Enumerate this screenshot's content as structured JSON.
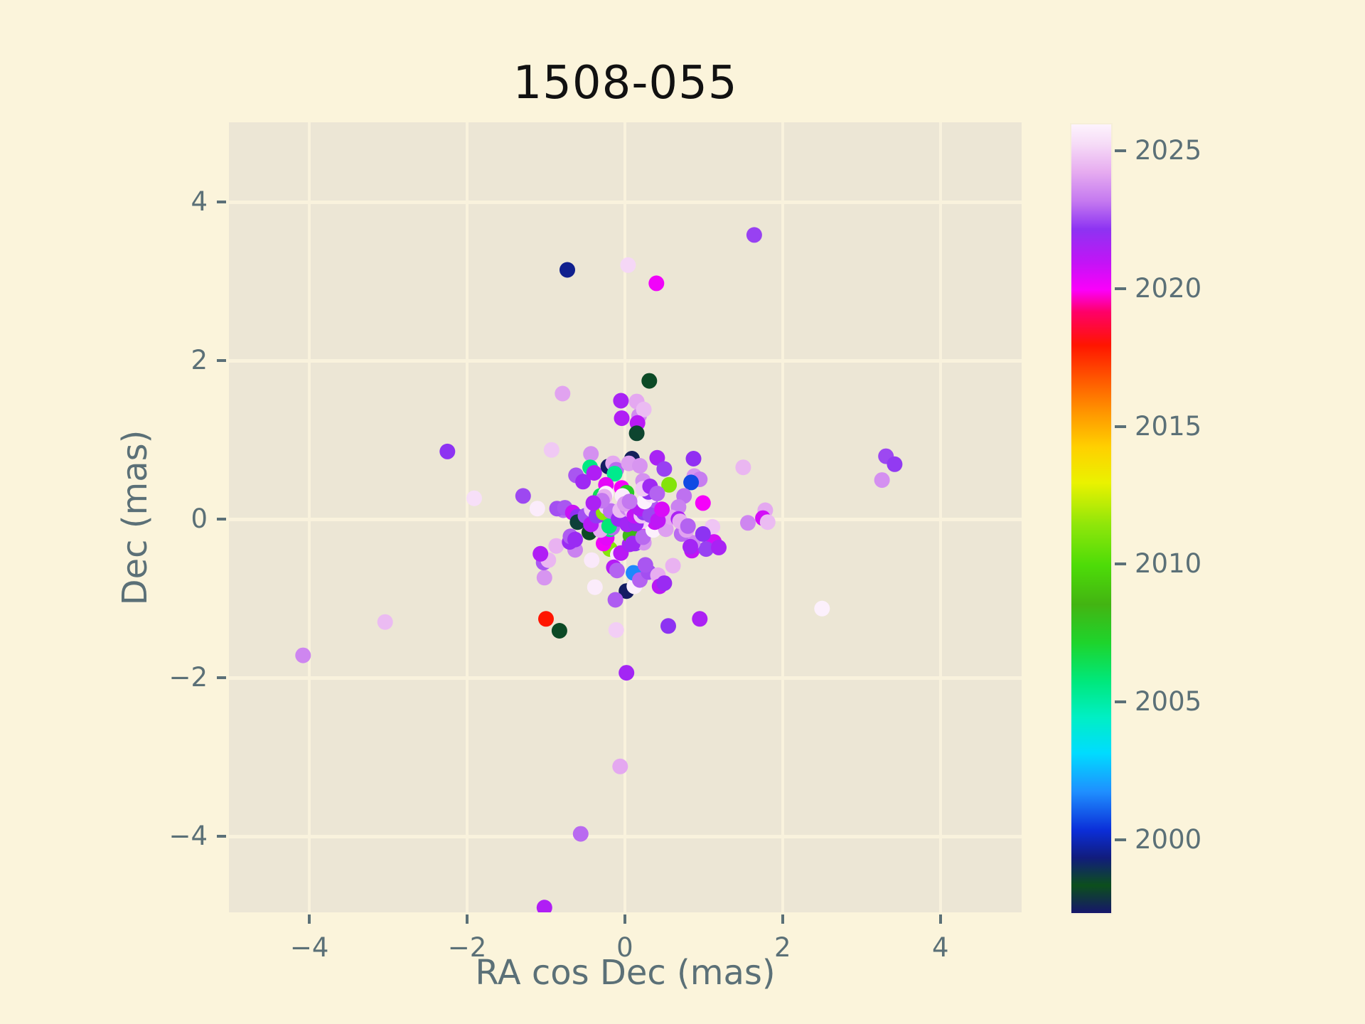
{
  "title": "1508-055",
  "style": {
    "figure_bg": "#fbf4db",
    "axes_bg": "#ece6d5",
    "grid_color": "#f9f2dd",
    "tick_color": "#5b7077",
    "label_color": "#5b7077",
    "title_color": "#111111"
  },
  "x_axis": {
    "label": "RA cos Dec (mas)",
    "tick_values": [
      -4,
      -2,
      0,
      2,
      4
    ],
    "tick_labels": [
      "−4",
      "−2",
      "0",
      "2",
      "4"
    ],
    "range": [
      -5.02,
      5.03
    ]
  },
  "y_axis": {
    "label": "Dec (mas)",
    "tick_values": [
      -4,
      -2,
      0,
      2,
      4
    ],
    "tick_labels": [
      "−4",
      "−2",
      "0",
      "2",
      "4"
    ],
    "range": [
      -4.96,
      5.0
    ]
  },
  "colorbar": {
    "vmin": 1997.4,
    "vmax": 2026.0,
    "tick_values": [
      2025,
      2020,
      2015,
      2010,
      2005,
      2000
    ],
    "tick_labels": [
      "2025",
      "2020",
      "2015",
      "2010",
      "2005",
      "2000"
    ],
    "stops": [
      [
        1997.4,
        "#16166b"
      ],
      [
        1998.4,
        "#0c4f1c"
      ],
      [
        1999.4,
        "#111c7c"
      ],
      [
        2000.4,
        "#0b2ed8"
      ],
      [
        2001.8,
        "#1f8fff"
      ],
      [
        2003.2,
        "#00dcff"
      ],
      [
        2004.5,
        "#00efc4"
      ],
      [
        2005.8,
        "#00e87c"
      ],
      [
        2007.2,
        "#1ed42c"
      ],
      [
        2008.6,
        "#43b412"
      ],
      [
        2010.0,
        "#4ddc08"
      ],
      [
        2011.5,
        "#90e60a"
      ],
      [
        2013.0,
        "#eaf200"
      ],
      [
        2014.3,
        "#ffd000"
      ],
      [
        2015.5,
        "#ff9800"
      ],
      [
        2016.8,
        "#ff5500"
      ],
      [
        2018.0,
        "#ff1500"
      ],
      [
        2019.2,
        "#ff0068"
      ],
      [
        2020.0,
        "#fb00fa"
      ],
      [
        2021.0,
        "#c214f6"
      ],
      [
        2022.2,
        "#8d33f2"
      ],
      [
        2023.2,
        "#c478f0"
      ],
      [
        2024.3,
        "#e7adf0"
      ],
      [
        2025.3,
        "#f6dcf7"
      ],
      [
        2026.0,
        "#fdf3fd"
      ]
    ]
  },
  "chart_data": {
    "type": "scatter",
    "title": "1508-055",
    "xlabel": "RA cos Dec (mas)",
    "ylabel": "Dec (mas)",
    "xlim": [
      -5.02,
      5.03
    ],
    "ylim": [
      -4.96,
      5.0
    ],
    "grid": true,
    "color_variable": "epoch year (colorbar 1997.4–2026)",
    "marker_radius_px": 11,
    "point_format": [
      "ra_cos_dec_mas",
      "dec_mas",
      "epoch_year"
    ],
    "points": [
      [
        1.64,
        3.58,
        2022.4
      ],
      [
        -0.73,
        3.14,
        1999.6
      ],
      [
        0.04,
        3.2,
        2025.2
      ],
      [
        0.4,
        2.97,
        2020.2
      ],
      [
        0.31,
        1.74,
        1998.5
      ],
      [
        -0.79,
        1.58,
        2024.1
      ],
      [
        -0.04,
        1.27,
        2021.4
      ],
      [
        0.18,
        1.3,
        2023.6
      ],
      [
        -0.05,
        1.49,
        2021.6
      ],
      [
        0.15,
        1.48,
        2024.2
      ],
      [
        0.24,
        1.38,
        2024.6
      ],
      [
        0.16,
        1.21,
        2021.2
      ],
      [
        0.15,
        1.08,
        1998.6
      ],
      [
        -2.25,
        0.85,
        2022.2
      ],
      [
        -1.91,
        0.26,
        2025.4
      ],
      [
        -1.29,
        0.29,
        2022.5
      ],
      [
        -0.93,
        0.87,
        2024.9
      ],
      [
        -1.11,
        0.13,
        2025.8
      ],
      [
        -0.78,
        0.11,
        2023.0
      ],
      [
        -0.86,
        0.13,
        2022.6
      ],
      [
        -0.62,
        0.55,
        2022.7
      ],
      [
        -0.53,
        0.47,
        2021.8
      ],
      [
        -0.43,
        0.82,
        2023.7
      ],
      [
        -0.44,
        0.65,
        2005.7
      ],
      [
        -0.39,
        0.58,
        2021.4
      ],
      [
        -0.21,
        0.66,
        1997.5
      ],
      [
        -0.15,
        0.7,
        2024.2
      ],
      [
        -0.11,
        0.62,
        2023.0
      ],
      [
        -0.13,
        0.57,
        2005.5
      ],
      [
        0.09,
        0.76,
        1997.6
      ],
      [
        0.05,
        0.7,
        2024.0
      ],
      [
        0.19,
        0.67,
        2023.8
      ],
      [
        0.41,
        0.77,
        2021.6
      ],
      [
        0.5,
        0.63,
        2022.4
      ],
      [
        0.87,
        0.76,
        2022.1
      ],
      [
        0.88,
        0.54,
        2023.8
      ],
      [
        0.95,
        0.5,
        2023.3
      ],
      [
        0.84,
        0.46,
        2000.8
      ],
      [
        0.56,
        0.43,
        2011.2
      ],
      [
        0.99,
        0.2,
        2020.1
      ],
      [
        0.75,
        0.29,
        2023.1
      ],
      [
        0.68,
        0.15,
        2023.4
      ],
      [
        1.5,
        0.65,
        2024.5
      ],
      [
        3.31,
        0.79,
        2022.5
      ],
      [
        3.42,
        0.69,
        2022.3
      ],
      [
        3.26,
        0.49,
        2023.7
      ],
      [
        1.78,
        0.11,
        2024.2
      ],
      [
        1.75,
        0.01,
        2020.7
      ],
      [
        1.81,
        -0.04,
        2024.6
      ],
      [
        1.56,
        -0.05,
        2023.5
      ],
      [
        1.11,
        -0.1,
        2024.8
      ],
      [
        1.13,
        -0.29,
        2020.7
      ],
      [
        -3.04,
        -1.3,
        2024.6
      ],
      [
        -4.08,
        -1.72,
        2023.5
      ],
      [
        2.5,
        -1.13,
        2025.9
      ],
      [
        -1.0,
        -1.26,
        2018.0
      ],
      [
        -0.83,
        -1.41,
        1998.5
      ],
      [
        0.02,
        -1.94,
        2021.7
      ],
      [
        -0.11,
        -1.4,
        2025.0
      ],
      [
        0.55,
        -1.35,
        2022.2
      ],
      [
        0.95,
        -1.26,
        2021.5
      ],
      [
        -0.06,
        -3.12,
        2024.2
      ],
      [
        -0.56,
        -3.97,
        2023.0
      ],
      [
        -1.02,
        -4.9,
        2021.4
      ],
      [
        0.02,
        -0.91,
        1997.5
      ],
      [
        0.12,
        -0.85,
        2025.9
      ],
      [
        -0.12,
        -1.02,
        2022.8
      ],
      [
        0.11,
        -0.68,
        2001.7
      ],
      [
        0.19,
        -0.77,
        2022.9
      ],
      [
        0.3,
        -0.67,
        2022.6
      ],
      [
        0.42,
        -0.71,
        2024.3
      ],
      [
        0.44,
        -0.85,
        2021.2
      ],
      [
        0.5,
        -0.81,
        2021.9
      ],
      [
        0.61,
        -0.59,
        2024.4
      ],
      [
        -0.38,
        -0.86,
        2025.8
      ],
      [
        -0.42,
        -0.52,
        2025.7
      ],
      [
        -1.02,
        -0.74,
        2023.8
      ],
      [
        -1.03,
        -0.55,
        2022.7
      ],
      [
        -0.97,
        -0.52,
        2024.5
      ],
      [
        -1.07,
        -0.44,
        2021.4
      ],
      [
        -0.87,
        -0.34,
        2024.4
      ],
      [
        -0.63,
        -0.39,
        2023.4
      ],
      [
        -0.7,
        -0.29,
        2021.9
      ],
      [
        -0.19,
        -0.38,
        2011.3
      ],
      [
        -0.09,
        -0.45,
        2025.6
      ],
      [
        -0.05,
        -0.43,
        2021.2
      ],
      [
        -0.14,
        -0.61,
        2021.3
      ],
      [
        -0.1,
        -0.65,
        2022.9
      ],
      [
        0.06,
        -0.32,
        2021.6
      ],
      [
        0.13,
        -0.31,
        2022.3
      ],
      [
        0.24,
        -0.3,
        2023.8
      ],
      [
        0.85,
        -0.4,
        2021.0
      ],
      [
        1.03,
        -0.38,
        2022.4
      ],
      [
        1.19,
        -0.36,
        2021.6
      ],
      [
        0.86,
        -0.3,
        2023.5
      ],
      [
        0.83,
        -0.35,
        2021.7
      ],
      [
        0.72,
        -0.19,
        2023.0
      ],
      [
        0.26,
        -0.58,
        2022.7
      ],
      [
        0.2,
        -0.21,
        2020.3
      ],
      [
        0.07,
        -0.21,
        2008.4
      ],
      [
        0.1,
        -0.31,
        2021.8
      ],
      [
        -0.27,
        -0.31,
        2020.2
      ],
      [
        -0.23,
        -0.24,
        2020.4
      ],
      [
        -0.69,
        -0.22,
        2022.8
      ],
      [
        -0.63,
        -0.26,
        2021.9
      ],
      [
        -0.45,
        -0.17,
        1998.3
      ],
      [
        -0.19,
        -0.13,
        2005.8
      ],
      [
        0.23,
        -0.23,
        2023.0
      ],
      [
        0.34,
        -0.05,
        2024.2
      ],
      [
        0.36,
        -0.14,
        2025.9
      ],
      [
        0.52,
        -0.13,
        2024.0
      ],
      [
        0.78,
        -0.14,
        2024.1
      ],
      [
        0.99,
        -0.19,
        2022.2
      ],
      [
        0.38,
        -0.04,
        2020.9
      ],
      [
        -0.16,
        -0.11,
        2023.0
      ],
      [
        -0.27,
        -0.03,
        2021.9
      ],
      [
        -0.31,
        -0.14,
        2024.3
      ],
      [
        0.21,
        -0.03,
        2025.2
      ],
      [
        0.59,
        0.02,
        2024.2
      ],
      [
        0.68,
        0.0,
        2021.5
      ],
      [
        0.7,
        -0.03,
        2024.3
      ],
      [
        0.8,
        -0.09,
        2022.9
      ],
      [
        -0.76,
        0.14,
        2022.7
      ],
      [
        -0.66,
        0.08,
        2020.9
      ],
      [
        -0.6,
        0.03,
        2022.1
      ],
      [
        -0.6,
        -0.04,
        1998.7
      ],
      [
        -0.5,
        0.04,
        2022.6
      ],
      [
        -0.43,
        -0.07,
        2021.3
      ],
      [
        -0.39,
        0.15,
        2022.4
      ],
      [
        -0.42,
        0.12,
        2024.8
      ],
      [
        -0.34,
        0.17,
        2024.5
      ],
      [
        -0.36,
        0.04,
        2022.3
      ],
      [
        -0.27,
        0.08,
        2011.4
      ],
      [
        -0.23,
        0.15,
        2025.0
      ],
      [
        -0.2,
        -0.09,
        2005.9
      ],
      [
        -0.18,
        0.1,
        2023.1
      ],
      [
        -0.08,
        0.0,
        2021.9
      ],
      [
        -0.06,
        0.11,
        2024.6
      ],
      [
        0.03,
        0.14,
        2023.5
      ],
      [
        0.09,
        0.11,
        2024.7
      ],
      [
        0.03,
        -0.07,
        2021.7
      ],
      [
        0.14,
        -0.06,
        2021.9
      ],
      [
        0.12,
        0.04,
        2021.0
      ],
      [
        0.21,
        0.04,
        2024.8
      ],
      [
        0.24,
        0.08,
        2022.3
      ],
      [
        0.19,
        0.13,
        2021.3
      ],
      [
        0.33,
        0.17,
        2022.8
      ],
      [
        0.32,
        0.05,
        2022.5
      ],
      [
        0.42,
        -0.02,
        2021.1
      ],
      [
        0.47,
        0.12,
        2020.6
      ],
      [
        0.25,
        0.22,
        2025.9
      ],
      [
        0.34,
        0.3,
        2025.5
      ],
      [
        0.3,
        0.34,
        2022.1
      ],
      [
        -0.24,
        0.43,
        2020.4
      ],
      [
        -0.04,
        0.39,
        2020.1
      ],
      [
        0.02,
        0.33,
        2007.6
      ],
      [
        -0.31,
        0.29,
        2006.5
      ],
      [
        0.23,
        0.48,
        2023.7
      ],
      [
        0.23,
        0.38,
        2024.9
      ],
      [
        0.32,
        0.41,
        2021.8
      ],
      [
        0.41,
        0.32,
        2022.9
      ],
      [
        -0.24,
        0.32,
        2025.9
      ],
      [
        -0.03,
        0.29,
        2025.8
      ],
      [
        -0.26,
        0.28,
        2024.3
      ],
      [
        -0.29,
        0.23,
        2023.2
      ],
      [
        -0.4,
        0.2,
        2021.5
      ],
      [
        0.0,
        0.19,
        2024.0
      ],
      [
        0.06,
        0.22,
        2023.2
      ]
    ]
  }
}
